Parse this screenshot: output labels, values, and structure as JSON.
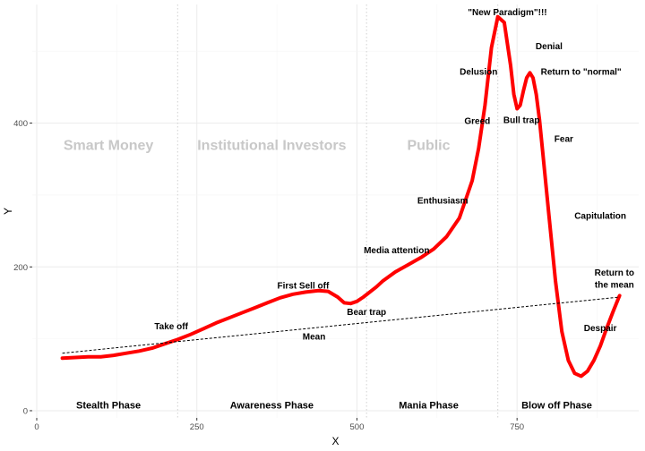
{
  "chart_data": {
    "type": "line",
    "xlabel": "X",
    "ylabel": "Y",
    "xlim": [
      -7,
      940
    ],
    "ylim": [
      -10,
      565
    ],
    "x_ticks": [
      0,
      250,
      500,
      750
    ],
    "y_ticks": [
      0,
      200,
      400
    ],
    "grid": true,
    "phase_dividers_x": [
      220,
      515,
      720
    ],
    "series": [
      {
        "color": "#ff0000",
        "style": "solid",
        "x": [
          40,
          60,
          80,
          100,
          120,
          140,
          160,
          180,
          200,
          220,
          240,
          260,
          280,
          300,
          320,
          340,
          360,
          380,
          400,
          420,
          440,
          455,
          470,
          480,
          490,
          500,
          510,
          520,
          530,
          540,
          560,
          580,
          600,
          620,
          640,
          660,
          680,
          690,
          700,
          710,
          720,
          730,
          740,
          745,
          750,
          755,
          760,
          765,
          770,
          775,
          780,
          785,
          790,
          800,
          810,
          820,
          830,
          840,
          850,
          860,
          870,
          880,
          890,
          900,
          910
        ],
        "y": [
          73,
          74,
          75,
          75,
          77,
          80,
          83,
          87,
          93,
          99,
          106,
          114,
          122,
          129,
          136,
          143,
          150,
          157,
          162,
          165,
          167,
          166,
          158,
          150,
          149,
          152,
          158,
          165,
          172,
          180,
          193,
          203,
          213,
          225,
          242,
          268,
          320,
          365,
          425,
          505,
          548,
          540,
          480,
          440,
          420,
          425,
          445,
          463,
          470,
          463,
          440,
          405,
          360,
          270,
          180,
          110,
          70,
          52,
          48,
          55,
          70,
          90,
          115,
          138,
          160
        ]
      },
      {
        "color": "#000000",
        "style": "dashed",
        "x": [
          40,
          910
        ],
        "y": [
          80,
          158
        ]
      }
    ],
    "annotations": [
      {
        "text": "\"New Paradigm\"!!!",
        "x": 735,
        "y": 555
      },
      {
        "text": "Denial",
        "x": 800,
        "y": 508
      },
      {
        "text": "Delusion",
        "x": 690,
        "y": 472
      },
      {
        "text": "Return to \"normal\"",
        "x": 850,
        "y": 472
      },
      {
        "text": "Greed",
        "x": 688,
        "y": 404
      },
      {
        "text": "Bull trap",
        "x": 757,
        "y": 405
      },
      {
        "text": "Fear",
        "x": 823,
        "y": 379
      },
      {
        "text": "Enthusiasm",
        "x": 634,
        "y": 293
      },
      {
        "text": "Capitulation",
        "x": 880,
        "y": 272
      },
      {
        "text": "Media attention",
        "x": 562,
        "y": 224
      },
      {
        "text": "First Sell off",
        "x": 416,
        "y": 175
      },
      {
        "text": "Bear trap",
        "x": 515,
        "y": 138
      },
      {
        "text": "Take off",
        "x": 210,
        "y": 118
      },
      {
        "text": "Mean",
        "x": 433,
        "y": 104
      },
      {
        "text": "Despair",
        "x": 880,
        "y": 116
      },
      {
        "text": "Return to",
        "x": 902,
        "y": 193
      },
      {
        "text": "the mean",
        "x": 902,
        "y": 176
      }
    ],
    "group_labels": [
      {
        "text": "Smart Money",
        "x": 112,
        "y": 370
      },
      {
        "text": "Institutional Investors",
        "x": 367,
        "y": 370
      },
      {
        "text": "Public",
        "x": 612,
        "y": 370
      }
    ],
    "phase_labels": [
      {
        "text": "Stealth Phase",
        "x": 112,
        "y": 8
      },
      {
        "text": "Awareness Phase",
        "x": 367,
        "y": 8
      },
      {
        "text": "Mania Phase",
        "x": 612,
        "y": 8
      },
      {
        "text": "Blow off Phase",
        "x": 812,
        "y": 8
      }
    ]
  }
}
